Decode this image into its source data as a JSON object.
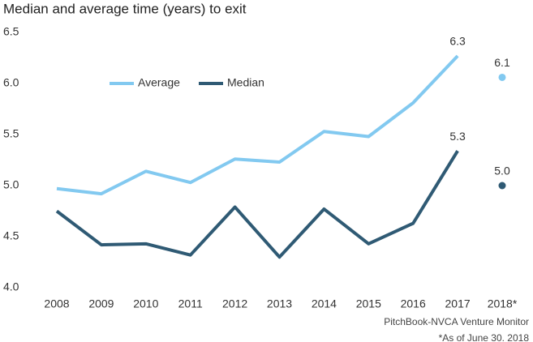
{
  "chart_data": {
    "type": "line",
    "title": "Median and average time (years) to exit",
    "source": "PitchBook-NVCA Venture Monitor",
    "footnote": "*As of June 30. 2018",
    "categories": [
      "2008",
      "2009",
      "2010",
      "2011",
      "2012",
      "2013",
      "2014",
      "2015",
      "2016",
      "2017",
      "2018*"
    ],
    "series": [
      {
        "name": "Average",
        "color": "#82c9f0",
        "values": [
          4.97,
          4.92,
          5.14,
          5.03,
          5.26,
          5.23,
          5.53,
          5.48,
          5.81,
          6.27,
          6.06
        ],
        "value_labels": [
          null,
          null,
          null,
          null,
          null,
          null,
          null,
          null,
          null,
          "6.3",
          "6.1"
        ]
      },
      {
        "name": "Median",
        "color": "#2f5a74",
        "values": [
          4.75,
          4.42,
          4.43,
          4.32,
          4.79,
          4.3,
          4.77,
          4.43,
          4.63,
          5.34,
          5.0
        ],
        "value_labels": [
          null,
          null,
          null,
          null,
          null,
          null,
          null,
          null,
          null,
          "5.3",
          "5.0"
        ]
      }
    ],
    "ylim": [
      4.0,
      6.5
    ],
    "yticks": [
      {
        "value": 4,
        "label": "4.0"
      },
      4.5,
      {
        "value": 5,
        "label": "5.0"
      },
      5.5,
      {
        "value": 6,
        "label": "6.0"
      },
      6.5
    ],
    "grid": false
  }
}
